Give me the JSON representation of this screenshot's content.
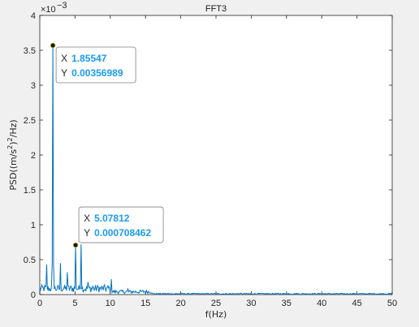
{
  "chart_data": {
    "type": "line",
    "title": "FFT3",
    "xlabel": "f(Hz)",
    "ylabel": "PSD((m/s^2)^2/Hz)",
    "y_exponent_label": "×10^-3",
    "xlim": [
      0,
      50
    ],
    "ylim": [
      0,
      0.004
    ],
    "x_ticks": [
      0,
      5,
      10,
      15,
      20,
      25,
      30,
      35,
      40,
      45,
      50
    ],
    "y_ticks": [
      0,
      0.0005,
      0.001,
      0.0015,
      0.002,
      0.0025,
      0.003,
      0.0035,
      0.004
    ],
    "y_tick_labels": [
      "0",
      "0.5",
      "1",
      "1.5",
      "2",
      "2.5",
      "3",
      "3.5",
      "4"
    ],
    "grid": false,
    "series_color": "#0072bd",
    "peaks": [
      {
        "x": 0.9766,
        "y": 0.00043
      },
      {
        "x": 1.85547,
        "y": 0.00356989
      },
      {
        "x": 2.93,
        "y": 0.00045
      },
      {
        "x": 3.9,
        "y": 0.00032
      },
      {
        "x": 5.07812,
        "y": 0.000708462
      },
      {
        "x": 5.86,
        "y": 0.00072
      },
      {
        "x": 6.84,
        "y": 0.00018
      },
      {
        "x": 7.5,
        "y": 0.00012
      },
      {
        "x": 8.3,
        "y": 0.00011
      },
      {
        "x": 10.2,
        "y": 0.00022
      },
      {
        "x": 12.5,
        "y": 8e-05
      },
      {
        "x": 14.6,
        "y": 6e-05
      }
    ],
    "datatips": [
      {
        "x_label": "X",
        "x_value": "1.85547",
        "y_label": "Y",
        "y_value": "0.00356989",
        "x": 1.85547,
        "y": 0.00356989
      },
      {
        "x_label": "X",
        "x_value": "5.07812",
        "y_label": "Y",
        "y_value": "0.000708462",
        "x": 5.07812,
        "y": 0.000708462
      }
    ]
  },
  "colors": {
    "background": "#f0f0f0",
    "plot_area": "#ffffff",
    "axis": "#262626",
    "tip_value": "#1a9bf0"
  }
}
